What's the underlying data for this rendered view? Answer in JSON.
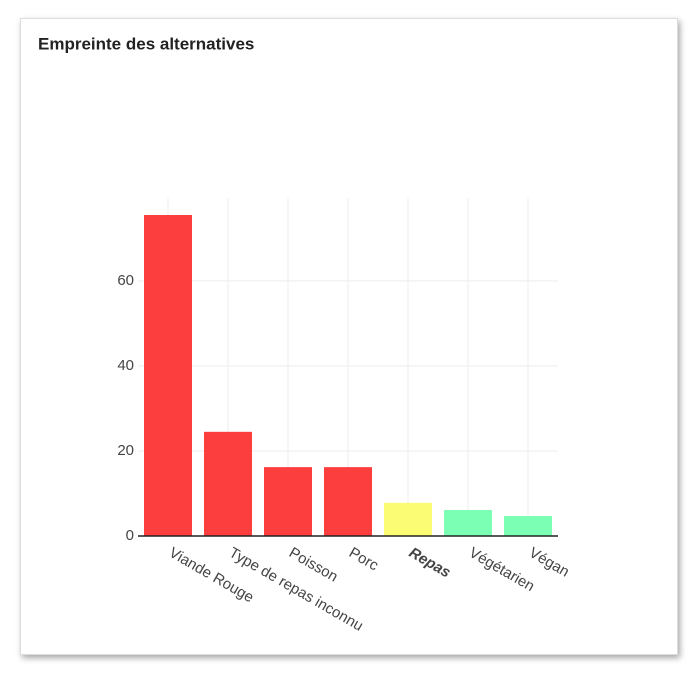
{
  "chart_data": {
    "type": "bar",
    "title": "Empreinte des alternatives",
    "categories": [
      "Viande Rouge",
      "Type de repas inconnu",
      "Poisson",
      "Porc",
      "Repas",
      "Végétarien",
      "Végan"
    ],
    "values": [
      75.5,
      24.5,
      16.2,
      16.2,
      7.8,
      6.1,
      4.7
    ],
    "colors": [
      "#fc3e3f",
      "#fc3e3f",
      "#fc3e3f",
      "#fc3e3f",
      "#fbfb74",
      "#7bffb5",
      "#7bffb5"
    ],
    "highlight_index": 4,
    "ylim": [
      0,
      79.5
    ],
    "yticks": [
      0,
      20,
      40,
      60
    ],
    "grid": true
  }
}
